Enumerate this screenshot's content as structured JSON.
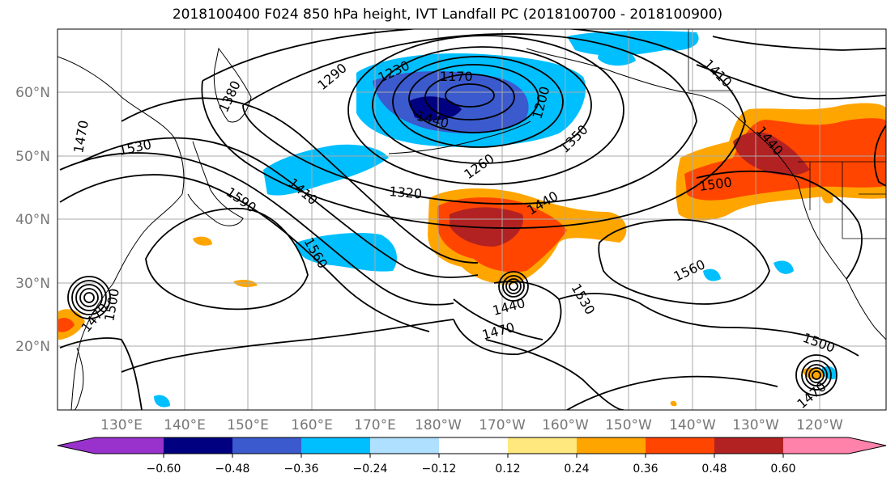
{
  "title": "2018100400 F024 850 hPa height, IVT Landfall PC (2018100700 - 2018100900)",
  "map": {
    "lat_labels": [
      "60°N",
      "50°N",
      "40°N",
      "30°N",
      "20°N"
    ],
    "lon_labels": [
      "130°E",
      "140°E",
      "150°E",
      "160°E",
      "170°E",
      "180°W",
      "170°W",
      "160°W",
      "150°W",
      "140°W",
      "130°W",
      "120°W"
    ],
    "contour_labels": [
      {
        "text": "1230"
      },
      {
        "text": "1170"
      },
      {
        "text": "1290"
      },
      {
        "text": "1380"
      },
      {
        "text": "1200"
      },
      {
        "text": "1440"
      },
      {
        "text": "1410"
      },
      {
        "text": "1470"
      },
      {
        "text": "1530"
      },
      {
        "text": "1350"
      },
      {
        "text": "1260"
      },
      {
        "text": "1320"
      },
      {
        "text": "1410"
      },
      {
        "text": "1590"
      },
      {
        "text": "1440"
      },
      {
        "text": "1500"
      },
      {
        "text": "1560"
      },
      {
        "text": "1560"
      },
      {
        "text": "1500"
      },
      {
        "text": "1470"
      },
      {
        "text": "1440"
      },
      {
        "text": "1530"
      },
      {
        "text": "1470"
      },
      {
        "text": "1500"
      },
      {
        "text": "1470"
      },
      {
        "text": "1440"
      }
    ],
    "colors": {
      "neg_extreme": "#9932cc",
      "neg_060": "#000080",
      "neg_048": "#3a5acd",
      "neg_036": "#00bfff",
      "neg_024": "#b0e0ff",
      "neutral": "#ffffff",
      "pos_012": "#ffe97f",
      "pos_024": "#ffa500",
      "pos_036": "#ff4500",
      "pos_048": "#b22222",
      "pos_extreme": "#ff82ab"
    }
  },
  "colorbar": {
    "tick_labels": [
      "−0.60",
      "−0.48",
      "−0.36",
      "−0.24",
      "−0.12",
      "0.12",
      "0.24",
      "0.36",
      "0.48",
      "0.60"
    ]
  }
}
